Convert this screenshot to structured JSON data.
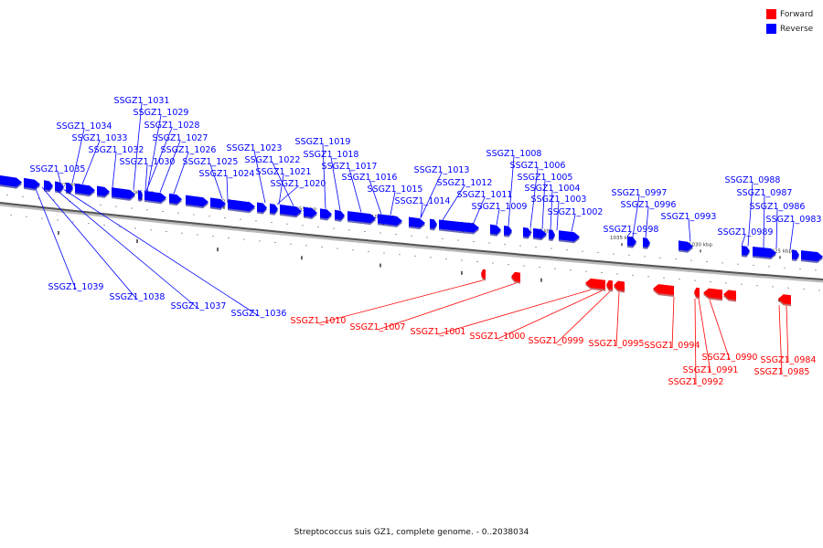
{
  "legend": {
    "forward": {
      "label": "Forward",
      "color": "#ff0000"
    },
    "reverse": {
      "label": "Reverse",
      "color": "#0000ff"
    }
  },
  "caption": "Streptococcus suis GZ1, complete genome. - 0..2038034",
  "tick_labels": [
    "1070 kbp",
    "1065 kbp",
    "1060 kbp",
    "1055 kbp",
    "1050 kbp",
    "1045 kbp",
    "1040 kbp",
    "1035 kbp",
    "1030 kbp",
    "1025 kbp"
  ],
  "reverse_genes": [
    "SSGZ1_1031",
    "SSGZ1_1029",
    "SSGZ1_1028",
    "SSGZ1_1034",
    "SSGZ1_1027",
    "SSGZ1_1033",
    "SSGZ1_1026",
    "SSGZ1_1032",
    "SSGZ1_1023",
    "SSGZ1_1019",
    "SSGZ1_1022",
    "SSGZ1_1030",
    "SSGZ1_1025",
    "SSGZ1_1018",
    "SSGZ1_1035",
    "SSGZ1_1017",
    "SSGZ1_1024",
    "SSGZ1_1021",
    "SSGZ1_1013",
    "SSGZ1_1016",
    "SSGZ1_1020",
    "SSGZ1_1012",
    "SSGZ1_1015",
    "SSGZ1_1011",
    "SSGZ1_1014",
    "SSGZ1_1009",
    "SSGZ1_1008",
    "SSGZ1_1006",
    "SSGZ1_1005",
    "SSGZ1_1004",
    "SSGZ1_1003",
    "SSGZ1_1002",
    "SSGZ1_0997",
    "SSGZ1_0996",
    "SSGZ1_0993",
    "SSGZ1_0998",
    "SSGZ1_0988",
    "SSGZ1_0987",
    "SSGZ1_0986",
    "SSGZ1_0983",
    "SSGZ1_0989",
    "SSGZ1_1039",
    "SSGZ1_1038",
    "SSGZ1_1037",
    "SSGZ1_1036"
  ],
  "forward_genes": [
    "SSGZ1_1010",
    "SSGZ1_1007",
    "SSGZ1_1001",
    "SSGZ1_1000",
    "SSGZ1_0999",
    "SSGZ1_0995",
    "SSGZ1_0994",
    "SSGZ1_0990",
    "SSGZ1_0991",
    "SSGZ1_0992",
    "SSGZ1_0984",
    "SSGZ1_0985"
  ]
}
